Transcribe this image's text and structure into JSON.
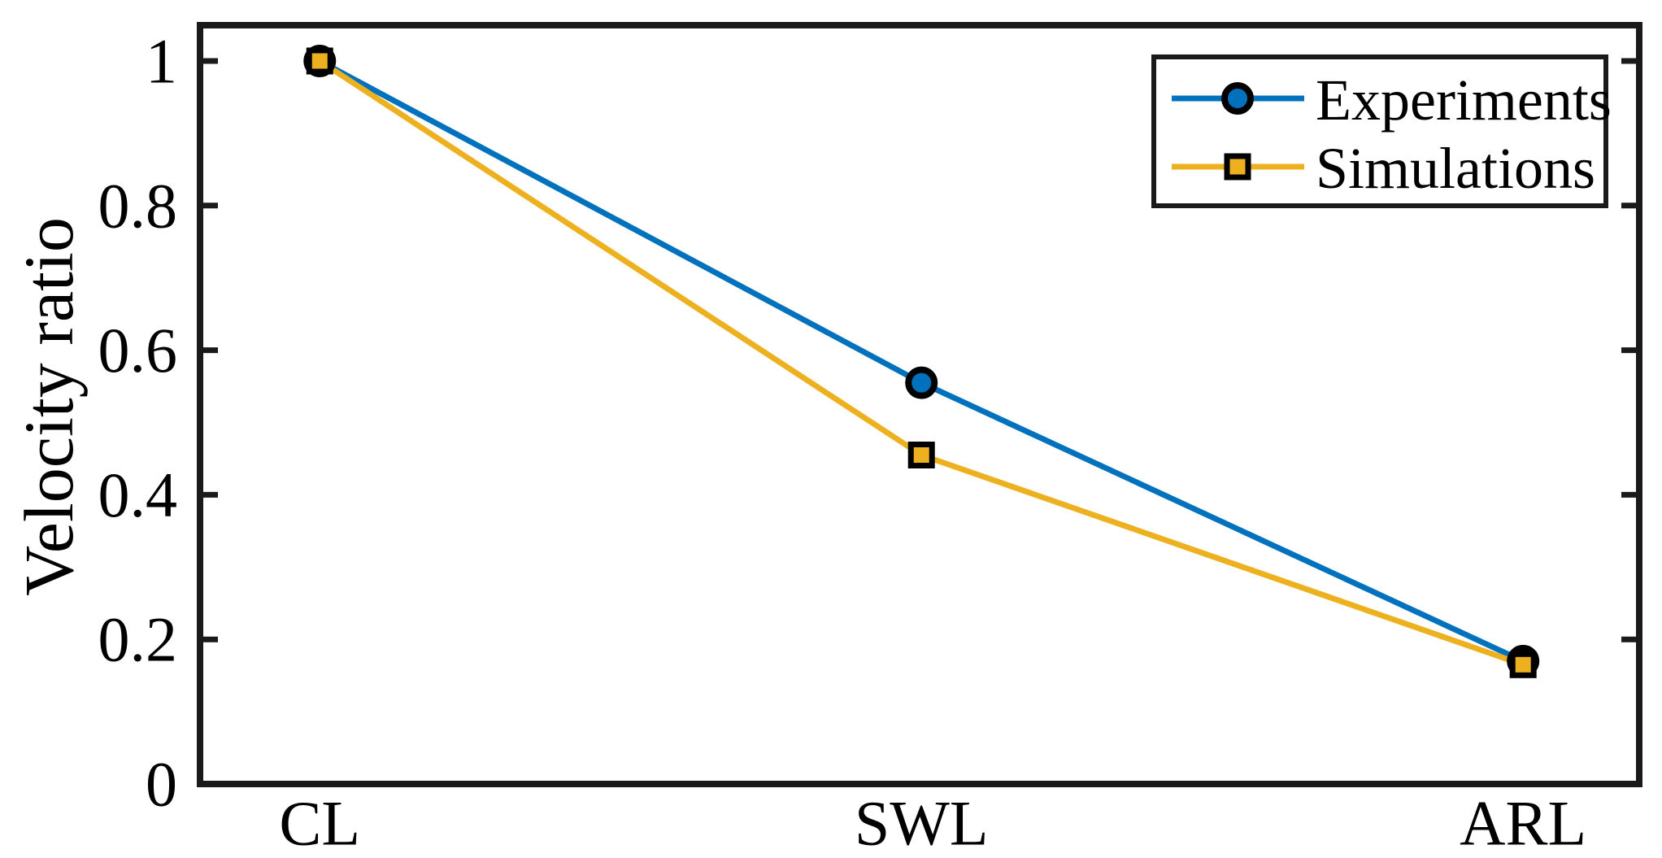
{
  "figure": {
    "background": "#ffffff"
  },
  "chart_data": {
    "type": "line",
    "categories": [
      "CL",
      "SWL",
      "ARL"
    ],
    "category_positions": [
      1,
      2,
      3
    ],
    "series": [
      {
        "name": "Experiments",
        "values": [
          1.0,
          0.555,
          0.17
        ],
        "color": "#0072BD",
        "marker": "circle"
      },
      {
        "name": "Simulations",
        "values": [
          1.0,
          0.455,
          0.165
        ],
        "color": "#EDB120",
        "marker": "square"
      }
    ],
    "title": "",
    "xlabel": "",
    "ylabel": "Velocity ratio",
    "yticks": [
      0,
      0.2,
      0.4,
      0.6,
      0.8,
      1
    ],
    "ytick_labels": [
      "0",
      "0.2",
      "0.4",
      "0.6",
      "0.8",
      "1"
    ],
    "xlim": [
      0.801,
      3.193
    ],
    "ylim": [
      0,
      1.0495
    ],
    "grid": false,
    "box": true,
    "legend_position": "top-right",
    "marker_edge_color": "#000000",
    "axis_color": "#1a1a1a"
  }
}
